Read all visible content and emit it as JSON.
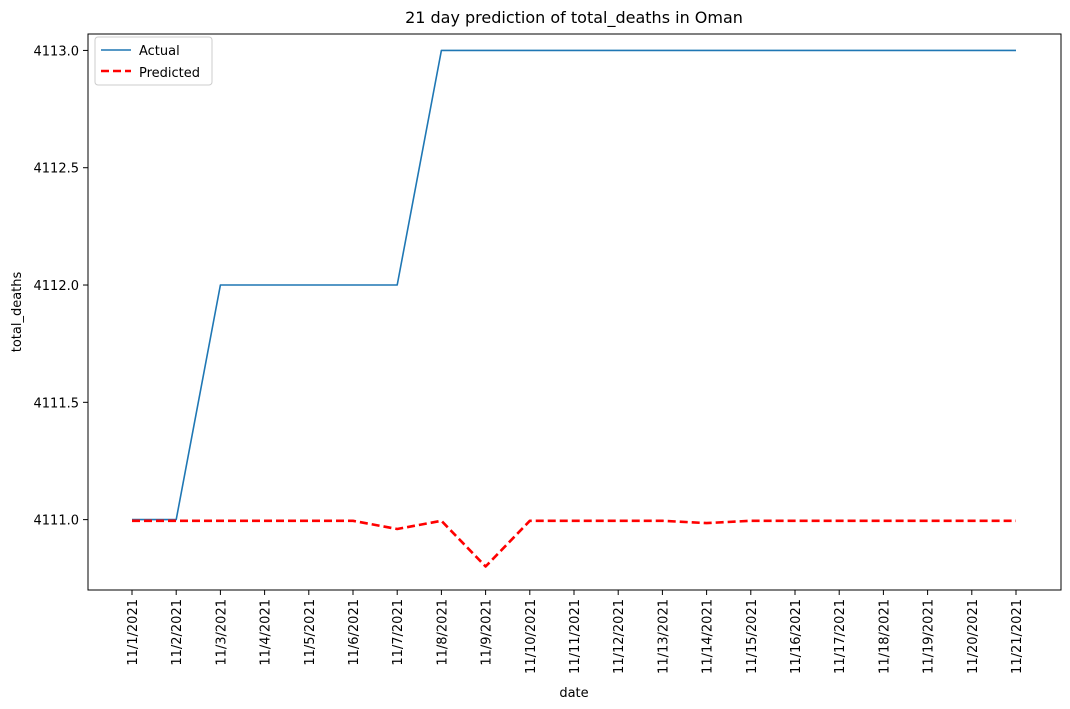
{
  "chart_data": {
    "type": "line",
    "title": "21 day prediction of total_deaths in Oman",
    "xlabel": "date",
    "ylabel": "total_deaths",
    "categories": [
      "11/1/2021",
      "11/2/2021",
      "11/3/2021",
      "11/4/2021",
      "11/5/2021",
      "11/6/2021",
      "11/7/2021",
      "11/8/2021",
      "11/9/2021",
      "11/10/2021",
      "11/11/2021",
      "11/12/2021",
      "11/13/2021",
      "11/14/2021",
      "11/15/2021",
      "11/16/2021",
      "11/17/2021",
      "11/18/2021",
      "11/19/2021",
      "11/20/2021",
      "11/21/2021"
    ],
    "series": [
      {
        "name": "Actual",
        "color": "#1f77b4",
        "style": "solid",
        "values": [
          4111.0,
          4111.0,
          4112.0,
          4112.0,
          4112.0,
          4112.0,
          4112.0,
          4113.0,
          4113.0,
          4113.0,
          4113.0,
          4113.0,
          4113.0,
          4113.0,
          4113.0,
          4113.0,
          4113.0,
          4113.0,
          4113.0,
          4113.0,
          4113.0
        ]
      },
      {
        "name": "Predicted",
        "color": "#ff0000",
        "style": "dashed",
        "values": [
          4110.995,
          4110.995,
          4110.995,
          4110.995,
          4110.995,
          4110.995,
          4110.96,
          4110.995,
          4110.8,
          4110.995,
          4110.995,
          4110.995,
          4110.995,
          4110.985,
          4110.995,
          4110.995,
          4110.995,
          4110.995,
          4110.995,
          4110.995,
          4110.995
        ]
      }
    ],
    "ylim": [
      4110.7,
      4113.07
    ],
    "yticks": [
      "4111.0",
      "4111.5",
      "4112.0",
      "4112.5",
      "4113.0"
    ],
    "ytick_values": [
      4111.0,
      4111.5,
      4112.0,
      4112.5,
      4113.0
    ],
    "grid": false,
    "legend_position": "top-left"
  }
}
